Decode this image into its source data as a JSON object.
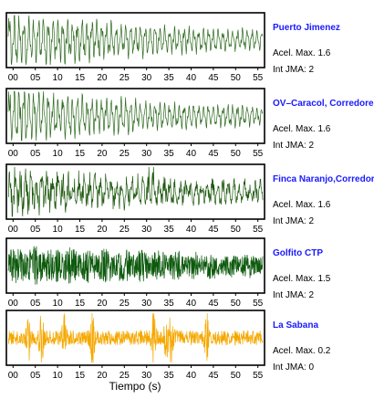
{
  "chart_data": [
    {
      "type": "line",
      "station": "Puerto Jimenez",
      "accel_label": "Acel. Max. 1.6",
      "jma_label": "Int JMA: 2",
      "color": "#2e6b1f",
      "pattern": "decaying-oscillation",
      "xlim": [
        -1.5,
        56.5
      ],
      "x_ticks": [
        "00",
        "05",
        "10",
        "15",
        "20",
        "25",
        "30",
        "35",
        "40",
        "45",
        "50",
        "55"
      ]
    },
    {
      "type": "line",
      "station": "OV–Caracol, Corredores",
      "accel_label": "Acel. Max. 1.6",
      "jma_label": "Int JMA: 2",
      "color": "#2e6b1f",
      "pattern": "decaying-oscillation",
      "xlim": [
        -1.5,
        56.5
      ],
      "x_ticks": [
        "00",
        "05",
        "10",
        "15",
        "20",
        "25",
        "30",
        "35",
        "40",
        "45",
        "50",
        "55"
      ]
    },
    {
      "type": "line",
      "station": "Finca Naranjo,Corredores",
      "accel_label": "Acel. Max. 1.6",
      "jma_label": "Int JMA: 2",
      "color": "#1f5a10",
      "pattern": "mixed",
      "xlim": [
        -1.5,
        56.5
      ],
      "x_ticks": [
        "00",
        "05",
        "10",
        "15",
        "20",
        "25",
        "30",
        "35",
        "40",
        "45",
        "50",
        "55"
      ]
    },
    {
      "type": "line",
      "station": "Golfito CTP",
      "accel_label": "Acel. Max. 1.5",
      "jma_label": "Int JMA: 2",
      "color": "#0d5a0d",
      "pattern": "dense-noise",
      "xlim": [
        -1.5,
        56.5
      ],
      "x_ticks": [
        "00",
        "05",
        "10",
        "15",
        "20",
        "25",
        "30",
        "35",
        "40",
        "45",
        "50",
        "55"
      ]
    },
    {
      "type": "line",
      "station": "La Sabana",
      "accel_label": "Acel. Max. 0.2",
      "jma_label": "Int JMA: 0",
      "color": "#f5a800",
      "pattern": "spiky-noise",
      "xlim": [
        -1.5,
        56.5
      ],
      "x_ticks": [
        "00",
        "05",
        "10",
        "15",
        "20",
        "25",
        "30",
        "35",
        "40",
        "45",
        "50",
        "55"
      ]
    }
  ],
  "xlabel": "Tiempo (s)",
  "station_name_color": "#1a1aff"
}
